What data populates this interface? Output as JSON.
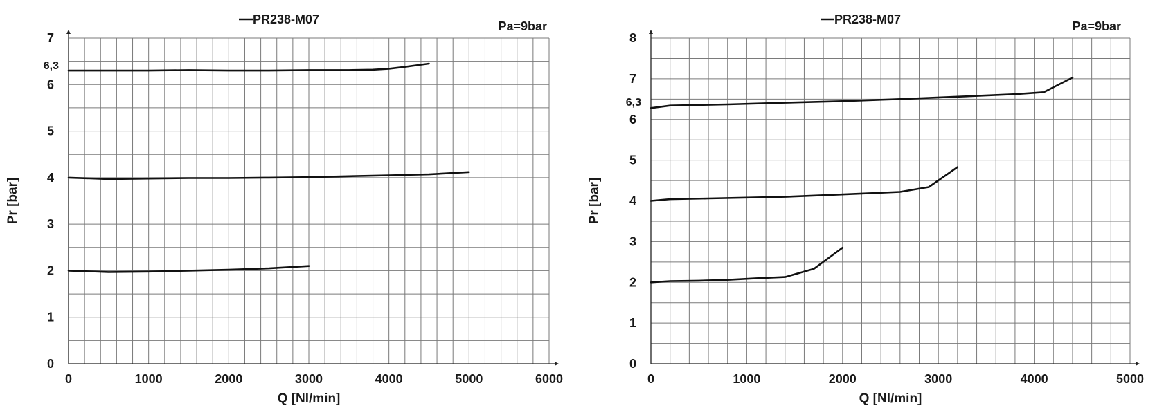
{
  "chart_data": [
    {
      "type": "line",
      "legend": "PR238-M07",
      "legend_placement": "top-center",
      "annotation": "Pa=9bar",
      "xlabel": "Q [Nl/min]",
      "ylabel": "Pr [bar]",
      "xlim": [
        0,
        6000
      ],
      "ylim": [
        0,
        7
      ],
      "grid": true,
      "xticks": [
        "0",
        "1000",
        "2000",
        "3000",
        "4000",
        "5000",
        "6000"
      ],
      "yticks": [
        "0",
        "1",
        "2",
        "3",
        "4",
        "5",
        "6",
        "7"
      ],
      "extra_ytick": {
        "value": 6.3,
        "label": "6,3"
      },
      "grid_step_x": 200,
      "grid_step_y": 0.5,
      "series": [
        {
          "x": [
            0,
            500,
            1000,
            1500,
            2000,
            2500,
            3000
          ],
          "y": [
            2.0,
            1.97,
            1.98,
            2.0,
            2.02,
            2.05,
            2.1
          ]
        },
        {
          "x": [
            0,
            500,
            1000,
            1500,
            2000,
            2500,
            3000,
            3500,
            4000,
            4500,
            5000
          ],
          "y": [
            4.0,
            3.97,
            3.98,
            3.99,
            3.99,
            4.0,
            4.01,
            4.03,
            4.05,
            4.07,
            4.12
          ]
        },
        {
          "x": [
            0,
            500,
            1000,
            1500,
            2000,
            2500,
            3000,
            3500,
            3800,
            4000,
            4200,
            4500
          ],
          "y": [
            6.3,
            6.3,
            6.3,
            6.31,
            6.3,
            6.3,
            6.31,
            6.31,
            6.32,
            6.34,
            6.38,
            6.45
          ]
        }
      ]
    },
    {
      "type": "line",
      "legend": "PR238-M07",
      "legend_placement": "top-center",
      "annotation": "Pa=9bar",
      "xlabel": "Q [Nl/min]",
      "ylabel": "Pr [bar]",
      "xlim": [
        0,
        5000
      ],
      "ylim": [
        0,
        8
      ],
      "grid": true,
      "xticks": [
        "0",
        "1000",
        "2000",
        "3000",
        "4000",
        "5000"
      ],
      "yticks": [
        "0",
        "1",
        "2",
        "3",
        "4",
        "5",
        "6",
        "7",
        "8"
      ],
      "extra_ytick": {
        "value": 6.3,
        "label": "6,3"
      },
      "grid_step_x": 200,
      "grid_step_y": 0.5,
      "series": [
        {
          "x": [
            0,
            200,
            500,
            800,
            1100,
            1400,
            1700,
            2000
          ],
          "y": [
            2.0,
            2.03,
            2.04,
            2.06,
            2.1,
            2.13,
            2.33,
            2.85
          ]
        },
        {
          "x": [
            0,
            200,
            600,
            1000,
            1400,
            1800,
            2200,
            2600,
            2900,
            3200
          ],
          "y": [
            4.0,
            4.04,
            4.06,
            4.08,
            4.1,
            4.14,
            4.18,
            4.22,
            4.34,
            4.83
          ]
        },
        {
          "x": [
            0,
            200,
            800,
            1400,
            2000,
            2600,
            3200,
            3800,
            4100,
            4400
          ],
          "y": [
            6.28,
            6.34,
            6.37,
            6.41,
            6.45,
            6.5,
            6.56,
            6.62,
            6.67,
            7.03
          ]
        }
      ]
    }
  ]
}
